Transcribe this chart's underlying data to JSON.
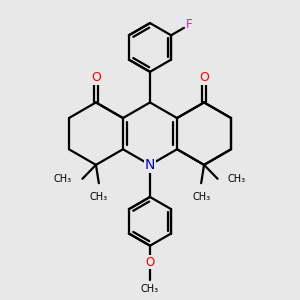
{
  "bg_color": "#e8e8e8",
  "bond_color": "#000000",
  "bond_width": 1.6,
  "N_color": "#0000cd",
  "O_color": "#ff0000",
  "F_color": "#ff00ff",
  "font_size": 8.5,
  "fig_width": 3.0,
  "fig_height": 3.0,
  "dpi": 100,
  "xlim": [
    0,
    10
  ],
  "ylim": [
    0,
    10
  ]
}
